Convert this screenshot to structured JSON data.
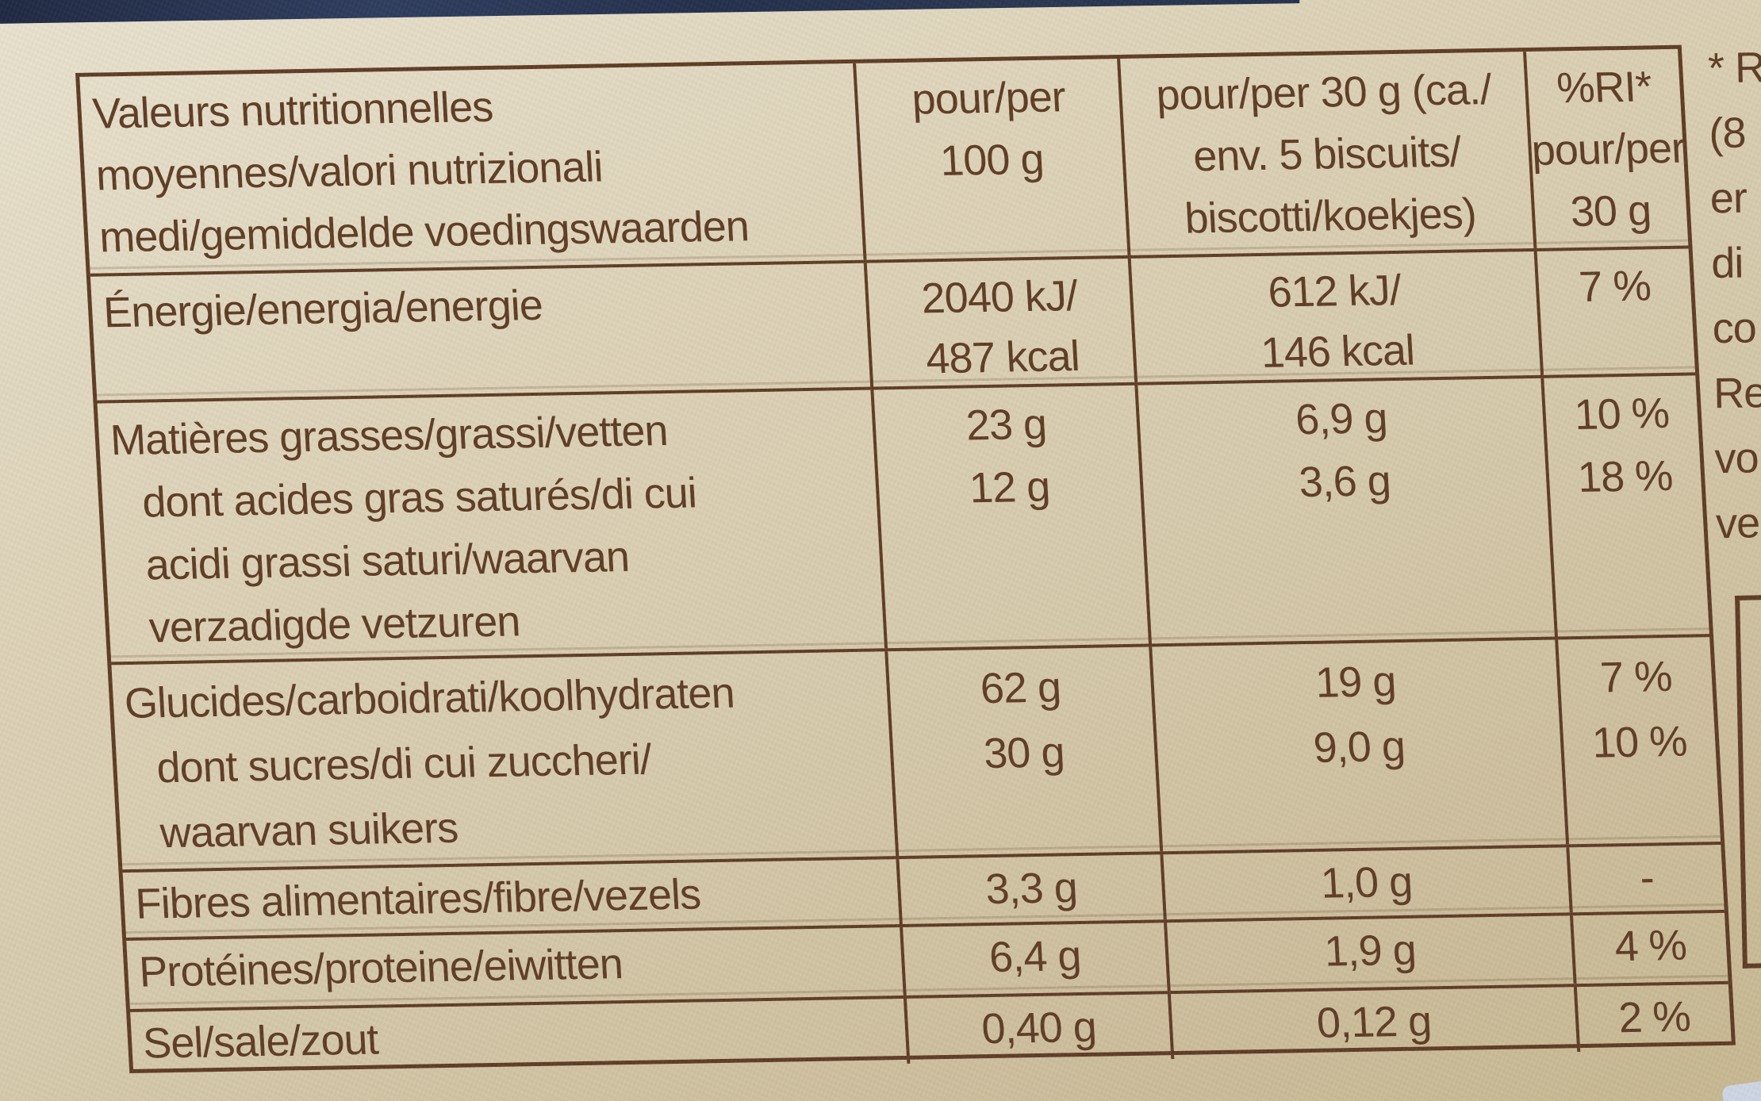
{
  "package": {
    "nutrition_table": {
      "header": {
        "label": [
          "Valeurs nutritionnelles",
          "moyennes/valori nutrizionali",
          "medi/gemiddelde voedingswaarden"
        ],
        "per_100g": [
          "pour/per",
          "100 g"
        ],
        "per_30g": [
          "pour/per 30 g (ca./",
          "env. 5 biscuits/",
          "biscotti/koekjes)"
        ],
        "ri": [
          "%RI*",
          "pour/per",
          "30 g"
        ]
      },
      "rows": [
        {
          "id": "energy",
          "label": [
            {
              "text": "Énergie/energia/energie"
            }
          ],
          "per_100g": [
            "2040 kJ/",
            "487 kcal"
          ],
          "per_30g": [
            "612 kJ/",
            "146 kcal"
          ],
          "ri": [
            "7 %"
          ]
        },
        {
          "id": "fat",
          "label": [
            {
              "text": "Matières grasses/grassi/vetten"
            },
            {
              "text": "dont acides gras saturés/di cui",
              "indent": true
            },
            {
              "text": "acidi grassi saturi/waarvan",
              "indent": true
            },
            {
              "text": "verzadigde vetzuren",
              "indent": true
            }
          ],
          "per_100g": [
            "23 g",
            "12 g"
          ],
          "per_30g": [
            "6,9 g",
            "3,6 g"
          ],
          "ri": [
            "10 %",
            "18 %"
          ]
        },
        {
          "id": "carbohydrates",
          "label": [
            {
              "text": "Glucides/carboidrati/koolhydraten"
            },
            {
              "text": "dont sucres/di cui zuccheri/",
              "indent": true
            },
            {
              "text": "waarvan suikers",
              "indent": true
            }
          ],
          "per_100g": [
            "62 g",
            "30 g"
          ],
          "per_30g": [
            "19 g",
            "9,0 g"
          ],
          "ri": [
            "7 %",
            "10 %"
          ]
        },
        {
          "id": "fibre",
          "label": [
            {
              "text": "Fibres alimentaires/fibre/vezels"
            }
          ],
          "per_100g": [
            "3,3 g"
          ],
          "per_30g": [
            "1,0 g"
          ],
          "ri": [
            "-"
          ]
        },
        {
          "id": "protein",
          "label": [
            {
              "text": "Protéines/proteine/eiwitten"
            }
          ],
          "per_100g": [
            "6,4 g"
          ],
          "per_30g": [
            "1,9 g"
          ],
          "ri": [
            "4 %"
          ]
        },
        {
          "id": "salt",
          "label": [
            {
              "text": "Sel/sale/zout"
            }
          ],
          "per_100g": [
            "0,40 g"
          ],
          "per_30g": [
            "0,12 g"
          ],
          "ri": [
            "2 %"
          ]
        }
      ]
    },
    "side_note_fragments": [
      "* R",
      "(8",
      "er",
      "di",
      "co",
      "Re",
      "vo",
      "ve"
    ],
    "colors": {
      "ink": "#5d3a23",
      "paper_top": "#e8e2cf",
      "paper_bottom": "#c7b892",
      "top_band_navy": "#202d4a",
      "corner_blue": "#ccd6e3"
    }
  }
}
